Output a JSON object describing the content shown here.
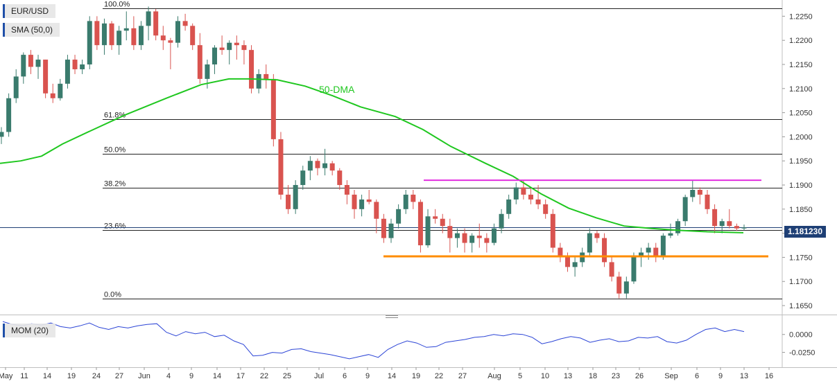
{
  "chart_data": {
    "type": "candlestick",
    "symbol": "EUR/USD",
    "indicator_label": "SMA (50,0)",
    "current_price": "1.181230",
    "sma_annotation": "50-DMA",
    "y_ticks": [
      "1.2250",
      "1.2200",
      "1.2150",
      "1.2100",
      "1.2050",
      "1.2000",
      "1.1950",
      "1.1900",
      "1.1850",
      "1.1800",
      "1.1750",
      "1.1700",
      "1.1650"
    ],
    "ylim": [
      1.164,
      1.2275
    ],
    "x_ticks": [
      "May",
      "11",
      "14",
      "19",
      "24",
      "27",
      "Jun",
      "4",
      "9",
      "14",
      "17",
      "22",
      "25",
      "Jul",
      "6",
      "9",
      "14",
      "19",
      "22",
      "27",
      "Aug",
      "5",
      "10",
      "13",
      "18",
      "23",
      "26",
      "Sep",
      "6",
      "9",
      "13",
      "16"
    ],
    "fibonacci": [
      {
        "label": "100.0%",
        "value": 1.2266
      },
      {
        "label": "61.8%",
        "value": 1.2036
      },
      {
        "label": "50.0%",
        "value": 1.1965
      },
      {
        "label": "38.2%",
        "value": 1.1894
      },
      {
        "label": "23.6%",
        "value": 1.1806
      },
      {
        "label": "0.0%",
        "value": 1.1664
      }
    ],
    "resistance": {
      "value": 1.191,
      "color": "#e22ee0"
    },
    "support": {
      "value": 1.1752,
      "color": "#ff8c00"
    },
    "current_line": 1.1812,
    "candles": [
      [
        1.2,
        1.202,
        1.1985,
        1.201
      ],
      [
        1.201,
        1.209,
        1.2,
        1.208
      ],
      [
        1.208,
        1.214,
        1.207,
        1.2125
      ],
      [
        1.2125,
        1.2175,
        1.211,
        1.217
      ],
      [
        1.217,
        1.218,
        1.213,
        1.2145
      ],
      [
        1.2145,
        1.217,
        1.212,
        1.216
      ],
      [
        1.216,
        1.216,
        1.208,
        1.209
      ],
      [
        1.209,
        1.211,
        1.207,
        1.208
      ],
      [
        1.208,
        1.212,
        1.2075,
        1.211
      ],
      [
        1.211,
        1.217,
        1.21,
        1.216
      ],
      [
        1.216,
        1.217,
        1.213,
        1.214
      ],
      [
        1.214,
        1.216,
        1.213,
        1.215
      ],
      [
        1.215,
        1.225,
        1.214,
        1.224
      ],
      [
        1.224,
        1.225,
        1.218,
        1.219
      ],
      [
        1.219,
        1.2245,
        1.217,
        1.2235
      ],
      [
        1.2235,
        1.224,
        1.218,
        1.219
      ],
      [
        1.219,
        1.223,
        1.217,
        1.222
      ],
      [
        1.222,
        1.226,
        1.22,
        1.2225
      ],
      [
        1.2225,
        1.225,
        1.218,
        1.219
      ],
      [
        1.219,
        1.224,
        1.218,
        1.223
      ],
      [
        1.223,
        1.227,
        1.22,
        1.226
      ],
      [
        1.226,
        1.2265,
        1.22,
        1.221
      ],
      [
        1.221,
        1.223,
        1.218,
        1.22
      ],
      [
        1.22,
        1.2205,
        1.214,
        1.2195
      ],
      [
        1.2195,
        1.225,
        1.2185,
        1.224
      ],
      [
        1.224,
        1.2255,
        1.222,
        1.223
      ],
      [
        1.223,
        1.2235,
        1.218,
        1.219
      ],
      [
        1.219,
        1.2215,
        1.211,
        1.212
      ],
      [
        1.212,
        1.216,
        1.21,
        1.215
      ],
      [
        1.215,
        1.219,
        1.213,
        1.2185
      ],
      [
        1.2185,
        1.221,
        1.217,
        1.218
      ],
      [
        1.218,
        1.22,
        1.215,
        1.2195
      ],
      [
        1.2195,
        1.221,
        1.216,
        1.219
      ],
      [
        1.219,
        1.22,
        1.215,
        1.218
      ],
      [
        1.218,
        1.219,
        1.209,
        1.21
      ],
      [
        1.21,
        1.214,
        1.209,
        1.213
      ],
      [
        1.213,
        1.215,
        1.21,
        1.212
      ],
      [
        1.212,
        1.213,
        1.198,
        1.1995
      ],
      [
        1.1995,
        1.201,
        1.187,
        1.188
      ],
      [
        1.188,
        1.19,
        1.184,
        1.185
      ],
      [
        1.185,
        1.191,
        1.184,
        1.19
      ],
      [
        1.19,
        1.194,
        1.189,
        1.193
      ],
      [
        1.193,
        1.196,
        1.191,
        1.195
      ],
      [
        1.195,
        1.1955,
        1.192,
        1.1935
      ],
      [
        1.1935,
        1.1975,
        1.192,
        1.1945
      ],
      [
        1.1945,
        1.195,
        1.192,
        1.193
      ],
      [
        1.193,
        1.1935,
        1.189,
        1.19
      ],
      [
        1.19,
        1.191,
        1.186,
        1.188
      ],
      [
        1.188,
        1.189,
        1.183,
        1.185
      ],
      [
        1.185,
        1.188,
        1.1835,
        1.187
      ],
      [
        1.187,
        1.189,
        1.186,
        1.1865
      ],
      [
        1.1865,
        1.187,
        1.18,
        1.183
      ],
      [
        1.183,
        1.184,
        1.178,
        1.179
      ],
      [
        1.179,
        1.183,
        1.178,
        1.182
      ],
      [
        1.182,
        1.186,
        1.181,
        1.185
      ],
      [
        1.185,
        1.189,
        1.184,
        1.188
      ],
      [
        1.188,
        1.189,
        1.185,
        1.1865
      ],
      [
        1.1865,
        1.187,
        1.176,
        1.1775
      ],
      [
        1.1775,
        1.185,
        1.177,
        1.1835
      ],
      [
        1.1835,
        1.185,
        1.182,
        1.183
      ],
      [
        1.183,
        1.184,
        1.18,
        1.1815
      ],
      [
        1.1815,
        1.183,
        1.176,
        1.179
      ],
      [
        1.179,
        1.181,
        1.177,
        1.18
      ],
      [
        1.18,
        1.181,
        1.176,
        1.178
      ],
      [
        1.178,
        1.18,
        1.176,
        1.1795
      ],
      [
        1.1795,
        1.182,
        1.177,
        1.179
      ],
      [
        1.179,
        1.18,
        1.176,
        1.178
      ],
      [
        1.178,
        1.182,
        1.1775,
        1.181
      ],
      [
        1.181,
        1.185,
        1.18,
        1.184
      ],
      [
        1.184,
        1.188,
        1.183,
        1.187
      ],
      [
        1.187,
        1.1905,
        1.186,
        1.1895
      ],
      [
        1.1895,
        1.191,
        1.187,
        1.188
      ],
      [
        1.188,
        1.1895,
        1.186,
        1.187
      ],
      [
        1.187,
        1.19,
        1.185,
        1.186
      ],
      [
        1.186,
        1.187,
        1.183,
        1.184
      ],
      [
        1.184,
        1.185,
        1.176,
        1.177
      ],
      [
        1.177,
        1.178,
        1.174,
        1.175
      ],
      [
        1.175,
        1.176,
        1.172,
        1.173
      ],
      [
        1.173,
        1.175,
        1.171,
        1.174
      ],
      [
        1.174,
        1.177,
        1.173,
        1.176
      ],
      [
        1.176,
        1.181,
        1.175,
        1.18
      ],
      [
        1.18,
        1.1805,
        1.178,
        1.179
      ],
      [
        1.179,
        1.18,
        1.173,
        1.174
      ],
      [
        1.174,
        1.175,
        1.17,
        1.171
      ],
      [
        1.171,
        1.172,
        1.1665,
        1.1675
      ],
      [
        1.1675,
        1.171,
        1.1665,
        1.17
      ],
      [
        1.17,
        1.176,
        1.1695,
        1.175
      ],
      [
        1.175,
        1.177,
        1.173,
        1.176
      ],
      [
        1.176,
        1.178,
        1.1745,
        1.177
      ],
      [
        1.177,
        1.178,
        1.174,
        1.175
      ],
      [
        1.175,
        1.18,
        1.1745,
        1.1795
      ],
      [
        1.1795,
        1.182,
        1.179,
        1.18
      ],
      [
        1.18,
        1.183,
        1.1795,
        1.1825
      ],
      [
        1.1825,
        1.188,
        1.1815,
        1.1875
      ],
      [
        1.1875,
        1.191,
        1.1865,
        1.189
      ],
      [
        1.189,
        1.1895,
        1.186,
        1.188
      ],
      [
        1.188,
        1.189,
        1.184,
        1.185
      ],
      [
        1.185,
        1.186,
        1.18,
        1.1815
      ],
      [
        1.1815,
        1.183,
        1.18,
        1.1825
      ],
      [
        1.1825,
        1.185,
        1.181,
        1.1815
      ],
      [
        1.1815,
        1.182,
        1.1805,
        1.181
      ],
      [
        1.181,
        1.1818,
        1.1806,
        1.1812
      ]
    ],
    "sma50": [
      [
        0,
        1.1945
      ],
      [
        30,
        1.195
      ],
      [
        60,
        1.196
      ],
      [
        90,
        1.1985
      ],
      [
        130,
        1.2012
      ],
      [
        180,
        1.2045
      ],
      [
        240,
        1.208
      ],
      [
        290,
        1.2108
      ],
      [
        330,
        1.212
      ],
      [
        360,
        1.212
      ],
      [
        400,
        1.2118
      ],
      [
        440,
        1.2105
      ],
      [
        480,
        1.2085
      ],
      [
        520,
        1.2062
      ],
      [
        570,
        1.2042
      ],
      [
        610,
        1.2015
      ],
      [
        650,
        1.198
      ],
      [
        700,
        1.1945
      ],
      [
        740,
        1.1918
      ],
      [
        780,
        1.1882
      ],
      [
        820,
        1.1852
      ],
      [
        860,
        1.1832
      ],
      [
        900,
        1.1815
      ],
      [
        940,
        1.181
      ],
      [
        980,
        1.1806
      ],
      [
        1020,
        1.1803
      ],
      [
        1072,
        1.1801
      ]
    ],
    "momentum": {
      "label": "MOM (20)",
      "y_ticks": [
        "0.0000",
        "-0.0250"
      ],
      "ylim": [
        -0.038,
        0.022
      ],
      "values": [
        0.018,
        0.014,
        0.012,
        0.015,
        0.013,
        0.016,
        0.011,
        0.009,
        0.012,
        0.016,
        0.01,
        0.007,
        0.011,
        0.009,
        0.012,
        0.014,
        0.015,
        0.003,
        -0.002,
        0.004,
        0.001,
        0.003,
        -0.003,
        -0.001,
        -0.009,
        -0.014,
        -0.03,
        -0.029,
        -0.025,
        -0.026,
        -0.021,
        -0.02,
        -0.024,
        -0.026,
        -0.028,
        -0.031,
        -0.034,
        -0.031,
        -0.028,
        -0.032,
        -0.021,
        -0.014,
        -0.009,
        -0.012,
        -0.018,
        -0.017,
        -0.011,
        -0.009,
        -0.007,
        -0.004,
        -0.003,
        0.0,
        -0.002,
        0.001,
        0.0,
        -0.004,
        -0.013,
        -0.01,
        -0.006,
        -0.003,
        -0.005,
        -0.011,
        -0.008,
        -0.006,
        -0.01,
        -0.009,
        -0.004,
        -0.005,
        -0.003,
        -0.01,
        -0.012,
        -0.008,
        0.0,
        0.007,
        0.009,
        0.004,
        0.007,
        0.004
      ]
    }
  }
}
